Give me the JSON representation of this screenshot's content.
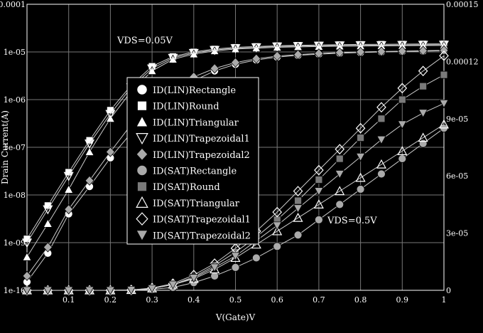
{
  "chart_data": {
    "type": "scatter",
    "xlabel": "V(Gate)V",
    "ylabel": "Drain Current(A)",
    "xlim": [
      0,
      1
    ],
    "ylim_left": [
      1e-10,
      0.0001
    ],
    "ylim_right": [
      0,
      0.00015
    ],
    "y_left_scale": "log",
    "y_right_scale": "linear",
    "x_ticks": [
      "0.1",
      "0.2",
      "0.3",
      "0.4",
      "0.5",
      "0.6",
      "0.7",
      "0.8",
      "0.9",
      "1"
    ],
    "y_left_ticks": [
      "1e-10",
      "1e-09",
      "1e-08",
      "1e-07",
      "1e-06",
      "1e-05",
      "0.0001"
    ],
    "y_right_ticks": [
      "0",
      "3e-05",
      "6e-05",
      "9e-05",
      "0.00012",
      "0.00015"
    ],
    "grid": true,
    "legend_position": "center-left",
    "annotations": [
      "VDS=0.05V",
      "VDS=0.5V"
    ],
    "series": [
      {
        "name": "ID(LIN)Rectangle",
        "marker": "circle",
        "axis": "left",
        "x": [
          0,
          0.05,
          0.1,
          0.15,
          0.2,
          0.25,
          0.3,
          0.35,
          0.4,
          0.45,
          0.5,
          0.55,
          0.6,
          0.65,
          0.7,
          0.75,
          0.8,
          0.85,
          0.9,
          0.95,
          1
        ],
        "values": [
          1.5e-10,
          6e-10,
          4e-09,
          1.5e-08,
          6e-08,
          2e-07,
          6e-07,
          1.3e-06,
          2.5e-06,
          4e-06,
          5.5e-06,
          6.8e-06,
          7.8e-06,
          8.5e-06,
          9e-06,
          9.4e-06,
          9.7e-06,
          1e-05,
          1.02e-05,
          1.04e-05,
          1.06e-05
        ]
      },
      {
        "name": "ID(LIN)Round",
        "marker": "square",
        "axis": "left",
        "x": [
          0,
          0.05,
          0.1,
          0.15,
          0.2,
          0.25,
          0.3,
          0.35,
          0.4,
          0.45,
          0.5,
          0.55,
          0.6,
          0.65,
          0.7,
          0.75,
          0.8,
          0.85,
          0.9,
          0.95,
          1
        ],
        "values": [
          1.2e-09,
          6e-09,
          3e-08,
          1.4e-07,
          6e-07,
          2e-06,
          5e-06,
          8e-06,
          1e-05,
          1.15e-05,
          1.25e-05,
          1.3e-05,
          1.35e-05,
          1.38e-05,
          1.4e-05,
          1.42e-05,
          1.44e-05,
          1.45e-05,
          1.46e-05,
          1.47e-05,
          1.48e-05
        ]
      },
      {
        "name": "ID(LIN)Triangular",
        "marker": "triangle-up",
        "axis": "left",
        "x": [
          0,
          0.05,
          0.1,
          0.15,
          0.2,
          0.25,
          0.3,
          0.35,
          0.4,
          0.45,
          0.5,
          0.55,
          0.6,
          0.65,
          0.7,
          0.75,
          0.8,
          0.85,
          0.9,
          0.95,
          1
        ],
        "values": [
          5e-10,
          2.5e-09,
          1.3e-08,
          8e-08,
          4e-07,
          1.5e-06,
          4e-06,
          7e-06,
          9e-06,
          1.05e-05,
          1.15e-05,
          1.2e-05,
          1.25e-05,
          1.28e-05,
          1.3e-05,
          1.32e-05,
          1.33e-05,
          1.34e-05,
          1.35e-05,
          1.36e-05,
          1.37e-05
        ]
      },
      {
        "name": "ID(LIN)Trapezoidal1",
        "marker": "triangle-down",
        "axis": "left",
        "x": [
          0,
          0.05,
          0.1,
          0.15,
          0.2,
          0.25,
          0.3,
          0.35,
          0.4,
          0.45,
          0.5,
          0.55,
          0.6,
          0.65,
          0.7,
          0.75,
          0.8,
          0.85,
          0.9,
          0.95,
          1
        ],
        "values": [
          1e-09,
          5e-09,
          2.5e-08,
          1.2e-07,
          5e-07,
          1.8e-06,
          4.5e-06,
          7.5e-06,
          9.5e-06,
          1.1e-05,
          1.2e-05,
          1.25e-05,
          1.3e-05,
          1.33e-05,
          1.35e-05,
          1.37e-05,
          1.38e-05,
          1.39e-05,
          1.4e-05,
          1.41e-05,
          1.42e-05
        ]
      },
      {
        "name": "ID(LIN)Trapezoidal2",
        "marker": "diamond",
        "axis": "left",
        "x": [
          0,
          0.05,
          0.1,
          0.15,
          0.2,
          0.25,
          0.3,
          0.35,
          0.4,
          0.45,
          0.5,
          0.55,
          0.6,
          0.65,
          0.7,
          0.75,
          0.8,
          0.85,
          0.9,
          0.95,
          1
        ],
        "values": [
          2e-10,
          8e-10,
          5e-09,
          2e-08,
          8e-08,
          3e-07,
          8e-07,
          1.6e-06,
          3e-06,
          4.5e-06,
          6e-06,
          7.2e-06,
          8.2e-06,
          8.8e-06,
          9.3e-06,
          9.7e-06,
          1e-05,
          1.02e-05,
          1.04e-05,
          1.06e-05,
          1.08e-05
        ]
      },
      {
        "name": "ID(SAT)Rectangle",
        "marker": "circle",
        "axis": "right",
        "x": [
          0,
          0.05,
          0.1,
          0.15,
          0.2,
          0.25,
          0.3,
          0.35,
          0.4,
          0.45,
          0.5,
          0.55,
          0.6,
          0.65,
          0.7,
          0.75,
          0.8,
          0.85,
          0.9,
          0.95,
          1
        ],
        "values": [
          0,
          0,
          0,
          0,
          0,
          1e-07,
          5e-07,
          1.5e-06,
          4e-06,
          7.5e-06,
          1.2e-05,
          1.7e-05,
          2.3e-05,
          2.9e-05,
          3.7e-05,
          4.5e-05,
          5.3e-05,
          6.1e-05,
          6.9e-05,
          7.7e-05,
          8.5e-05
        ]
      },
      {
        "name": "ID(SAT)Round",
        "marker": "square",
        "axis": "right",
        "x": [
          0,
          0.05,
          0.1,
          0.15,
          0.2,
          0.25,
          0.3,
          0.35,
          0.4,
          0.45,
          0.5,
          0.55,
          0.6,
          0.65,
          0.7,
          0.75,
          0.8,
          0.85,
          0.9,
          0.95,
          1
        ],
        "values": [
          0,
          0,
          0,
          0,
          0,
          2e-07,
          1e-06,
          3e-06,
          7e-06,
          1.3e-05,
          2e-05,
          2.8e-05,
          3.7e-05,
          4.7e-05,
          5.8e-05,
          6.9e-05,
          8e-05,
          9e-05,
          0.0001,
          0.000107,
          0.000113
        ]
      },
      {
        "name": "ID(SAT)Triangular",
        "marker": "triangle-up",
        "axis": "right",
        "x": [
          0,
          0.05,
          0.1,
          0.15,
          0.2,
          0.25,
          0.3,
          0.35,
          0.4,
          0.45,
          0.5,
          0.55,
          0.6,
          0.65,
          0.7,
          0.75,
          0.8,
          0.85,
          0.9,
          0.95,
          1
        ],
        "values": [
          0,
          0,
          0,
          0,
          0,
          2e-07,
          1e-06,
          3e-06,
          6e-06,
          1.1e-05,
          1.7e-05,
          2.4e-05,
          3.1e-05,
          3.8e-05,
          4.5e-05,
          5.2e-05,
          5.9e-05,
          6.6e-05,
          7.3e-05,
          8e-05,
          8.7e-05
        ]
      },
      {
        "name": "ID(SAT)Trapezoidal1",
        "marker": "diamond-outline",
        "axis": "right",
        "x": [
          0,
          0.05,
          0.1,
          0.15,
          0.2,
          0.25,
          0.3,
          0.35,
          0.4,
          0.45,
          0.5,
          0.55,
          0.6,
          0.65,
          0.7,
          0.75,
          0.8,
          0.85,
          0.9,
          0.95,
          1
        ],
        "values": [
          0,
          0,
          0,
          0,
          0,
          2e-07,
          1.2e-06,
          3.5e-06,
          8e-06,
          1.4e-05,
          2.2e-05,
          3.1e-05,
          4.1e-05,
          5.2e-05,
          6.3e-05,
          7.4e-05,
          8.5e-05,
          9.6e-05,
          0.000106,
          0.000115,
          0.000123
        ]
      },
      {
        "name": "ID(SAT)Trapezoidal2",
        "marker": "triangle-down",
        "axis": "right",
        "x": [
          0,
          0.05,
          0.1,
          0.15,
          0.2,
          0.25,
          0.3,
          0.35,
          0.4,
          0.45,
          0.5,
          0.55,
          0.6,
          0.65,
          0.7,
          0.75,
          0.8,
          0.85,
          0.9,
          0.95,
          1
        ],
        "values": [
          0,
          0,
          0,
          0,
          0,
          2e-07,
          1e-06,
          3e-06,
          6.5e-06,
          1.2e-05,
          1.8e-05,
          2.6e-05,
          3.4e-05,
          4.3e-05,
          5.2e-05,
          6.1e-05,
          7e-05,
          7.9e-05,
          8.7e-05,
          9.3e-05,
          9.8e-05
        ]
      }
    ]
  },
  "colors": {
    "background": "#000000",
    "axis": "#ffffff",
    "grid": "#777777",
    "marker_fill": "#ffffff",
    "marker_fill_gray": "#aaaaaa",
    "marker_fill_dark": "#7a7a7a"
  }
}
